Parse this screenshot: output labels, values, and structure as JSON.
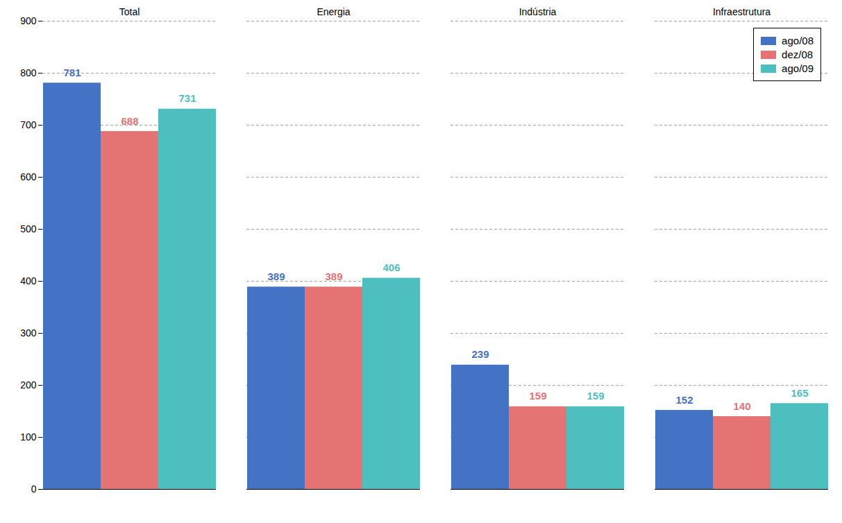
{
  "chart_data": {
    "type": "bar",
    "categories": [
      "Total",
      "Energia",
      "Indústria",
      "Infraestrutura"
    ],
    "series": [
      {
        "name": "ago/08",
        "color": "#4472c4",
        "values": [
          781,
          389,
          239,
          152
        ]
      },
      {
        "name": "dez/08",
        "color": "#e57373",
        "values": [
          688,
          389,
          159,
          140
        ]
      },
      {
        "name": "ago/09",
        "color": "#4dbfbf",
        "values": [
          731,
          406,
          159,
          165
        ]
      }
    ],
    "ylim": [
      0,
      900
    ],
    "yticks": [
      0,
      100,
      200,
      300,
      400,
      500,
      600,
      700,
      800,
      900
    ],
    "grid": true,
    "legend": "upper right",
    "data_labels": true
  }
}
